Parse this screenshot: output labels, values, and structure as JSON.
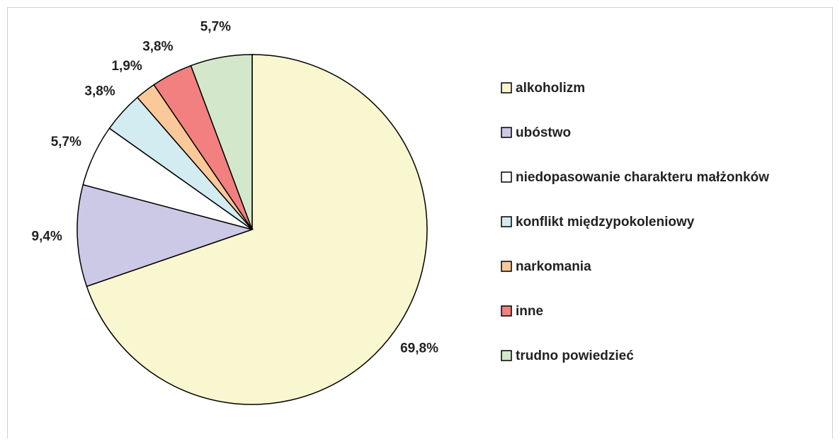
{
  "chart_data": {
    "type": "pie",
    "categories": [
      "alkoholizm",
      "ubóstwo",
      "niedopasowanie charakteru małżonków",
      "konflikt międzypokoleniowy",
      "narkomania",
      "inne",
      "trudno powiedzieć"
    ],
    "values": [
      69.8,
      9.4,
      5.7,
      3.8,
      1.9,
      3.8,
      5.7
    ],
    "value_labels": [
      "69,8%",
      "9,4%",
      "5,7%",
      "3,8%",
      "1,9%",
      "3,8%",
      "5,7%"
    ],
    "colors": [
      "#f9f7cf",
      "#ccc9e6",
      "#ffffff",
      "#d2ecf1",
      "#fbc999",
      "#f28080",
      "#d3e8cb"
    ],
    "legend": "right"
  }
}
